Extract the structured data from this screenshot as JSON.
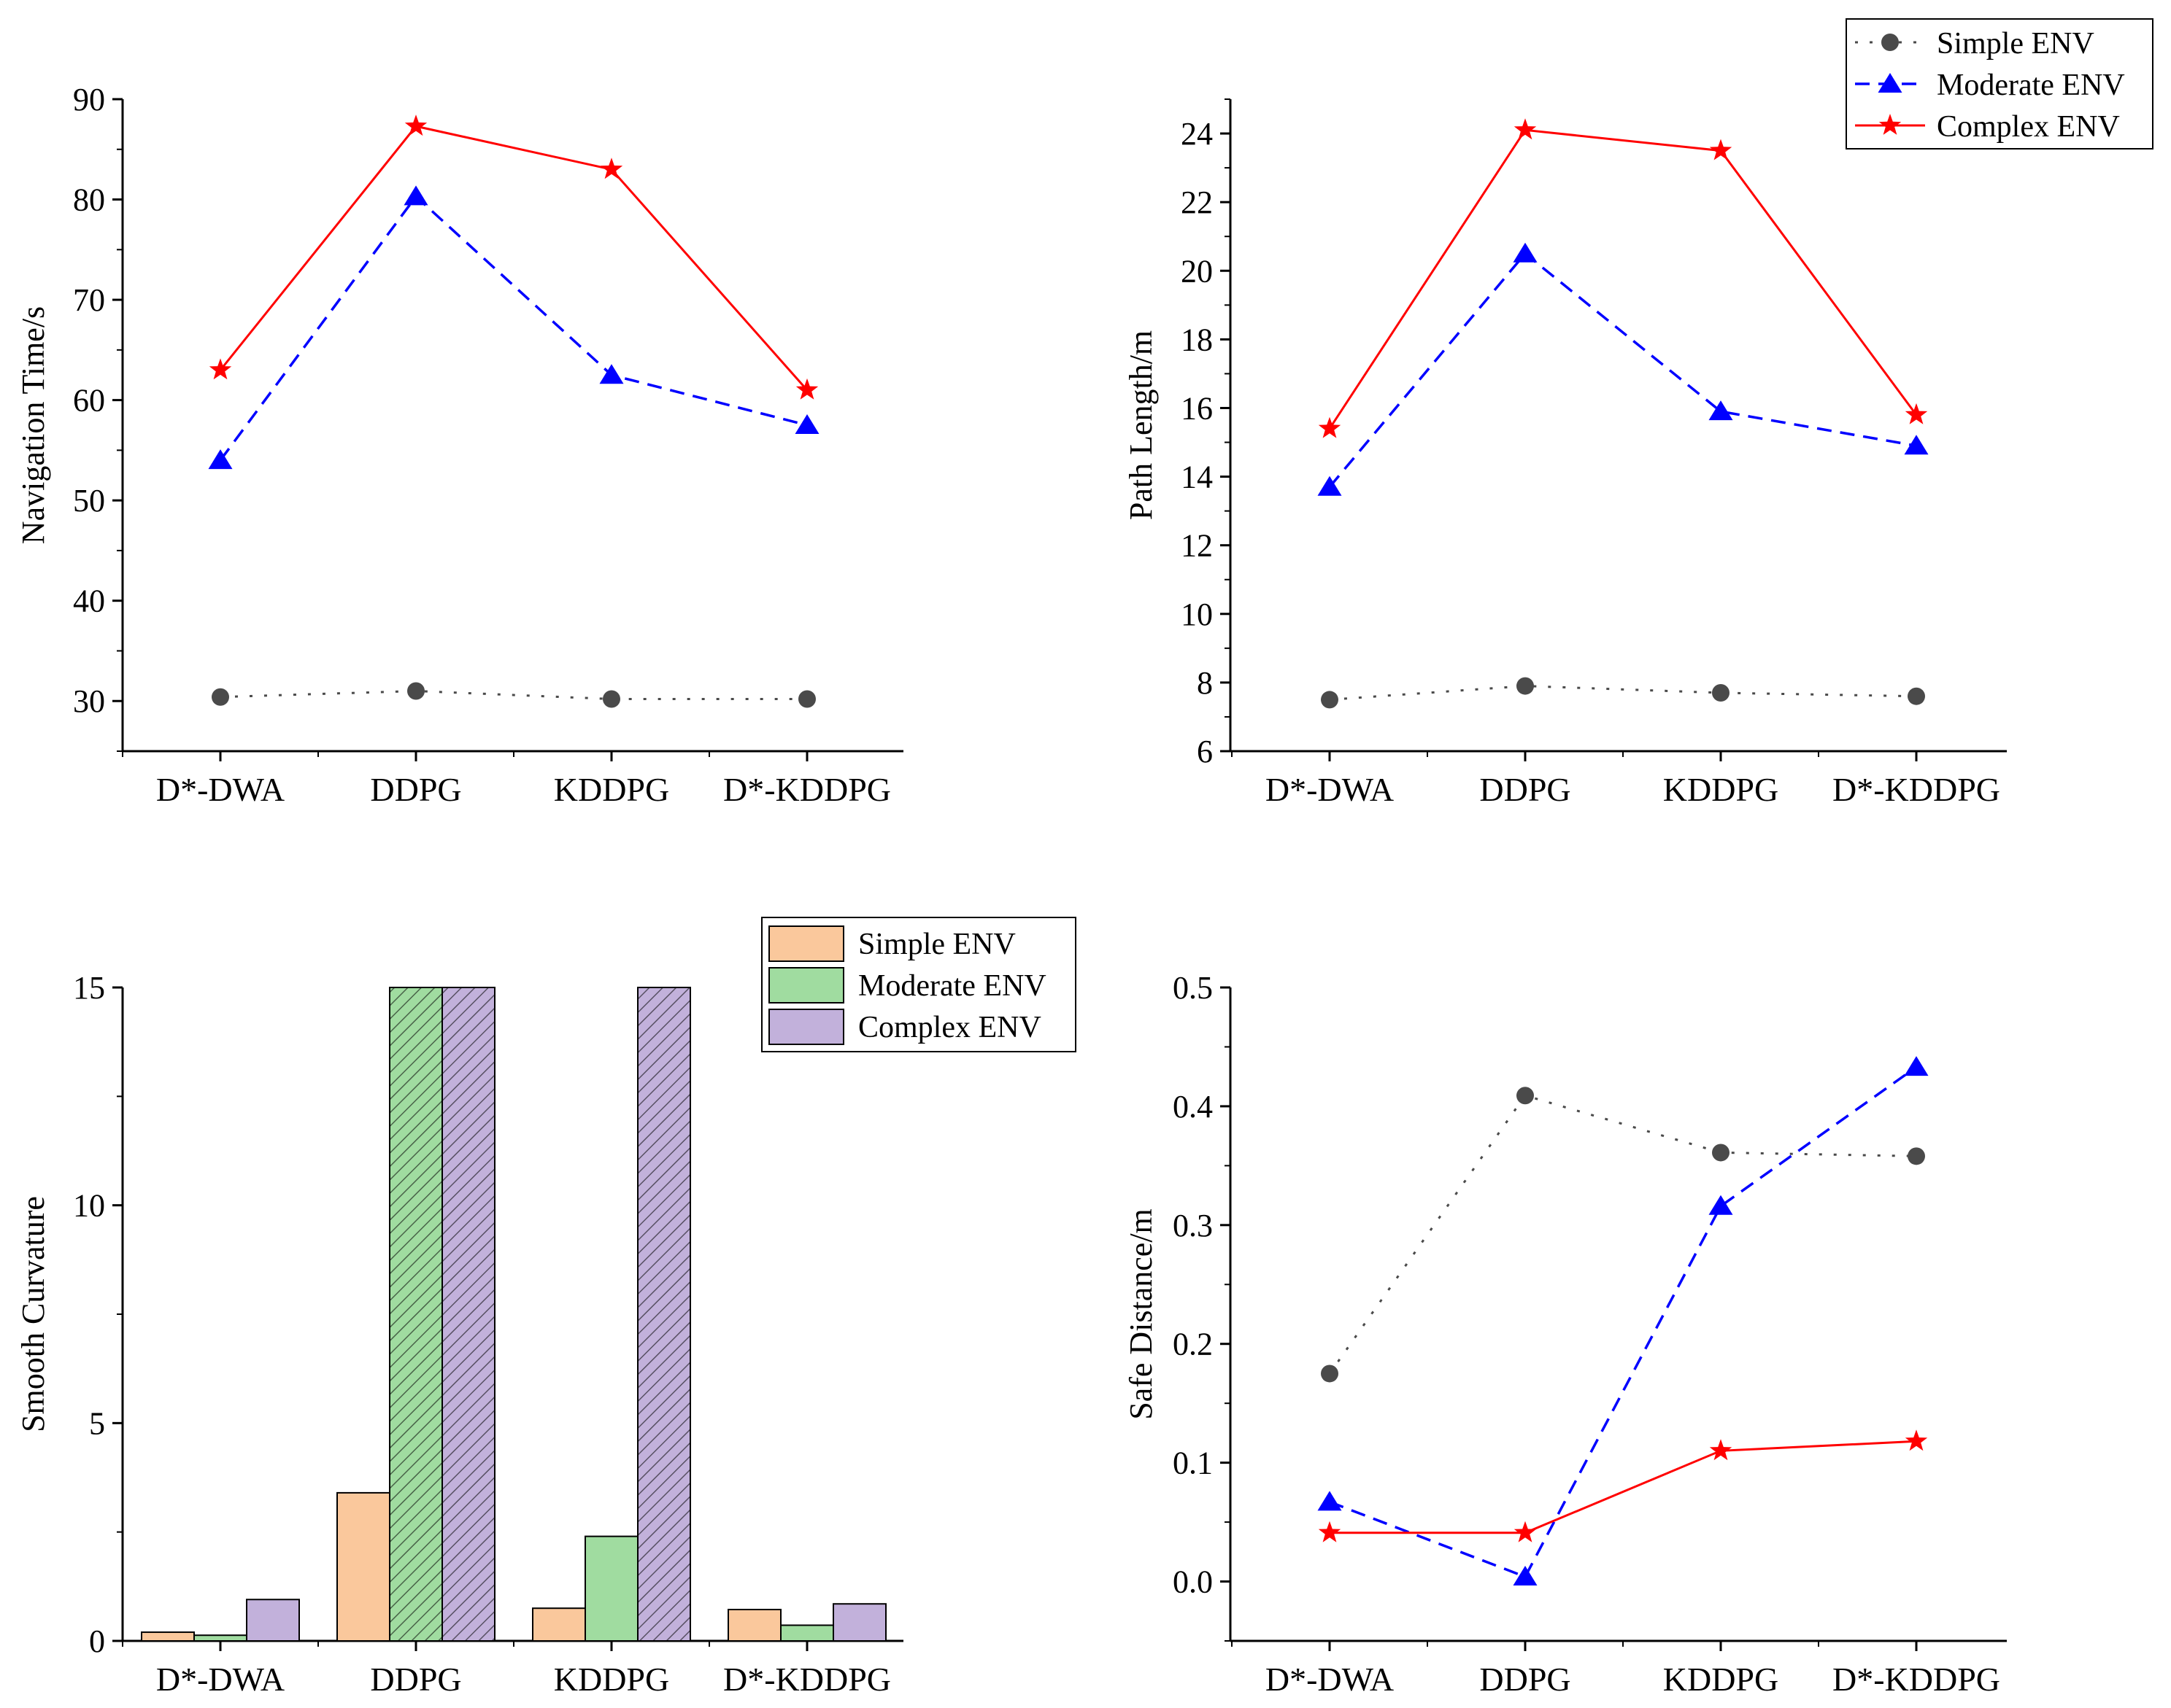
{
  "colors": {
    "simple_line": "#4a4a4a",
    "moderate_line": "#0000ff",
    "complex_line": "#ff0000",
    "simple_bar": "#fac89c",
    "moderate_bar": "#a0dca0",
    "complex_bar": "#c2b1db"
  },
  "chart_data": [
    {
      "id": "navigation-time",
      "type": "line",
      "categories": [
        "D*-DWA",
        "DDPG",
        "KDDPG",
        "D*-KDDPG"
      ],
      "ylabel": "Navigation Time/s",
      "ylim": [
        25,
        90
      ],
      "yticks": [
        30,
        40,
        50,
        60,
        70,
        80,
        90
      ],
      "series": [
        {
          "name": "Simple ENV",
          "values": [
            30.4,
            31.0,
            30.2,
            30.2
          ]
        },
        {
          "name": "Moderate ENV",
          "values": [
            54.0,
            80.3,
            62.5,
            57.5
          ]
        },
        {
          "name": "Complex ENV",
          "values": [
            63.0,
            87.3,
            83.0,
            61.0
          ]
        }
      ]
    },
    {
      "id": "path-length",
      "type": "line",
      "categories": [
        "D*-DWA",
        "DDPG",
        "KDDPG",
        "D*-KDDPG"
      ],
      "ylabel": "Path Length/m",
      "ylim": [
        6,
        25
      ],
      "yticks": [
        6,
        8,
        10,
        12,
        14,
        16,
        18,
        20,
        22,
        24
      ],
      "legend": [
        "Simple ENV",
        "Moderate ENV",
        "Complex ENV"
      ],
      "legend_position": "top-right",
      "series": [
        {
          "name": "Simple ENV",
          "values": [
            7.5,
            7.9,
            7.7,
            7.6
          ]
        },
        {
          "name": "Moderate ENV",
          "values": [
            13.7,
            20.5,
            15.9,
            14.9
          ]
        },
        {
          "name": "Complex ENV",
          "values": [
            15.4,
            24.1,
            23.5,
            15.8
          ]
        }
      ]
    },
    {
      "id": "smooth-curvature",
      "type": "bar",
      "categories": [
        "D*-DWA",
        "DDPG",
        "KDDPG",
        "D*-KDDPG"
      ],
      "ylabel": "Smooth Curvature",
      "ylim": [
        0,
        15
      ],
      "yticks": [
        0,
        5,
        10,
        15
      ],
      "legend": [
        "Simple ENV",
        "Moderate ENV",
        "Complex ENV"
      ],
      "legend_position": "top-right",
      "series": [
        {
          "name": "Simple ENV",
          "values": [
            0.2,
            3.4,
            0.75,
            0.72
          ]
        },
        {
          "name": "Moderate ENV",
          "values": [
            0.13,
            15,
            2.4,
            0.36
          ]
        },
        {
          "name": "Complex ENV",
          "values": [
            0.95,
            15,
            15,
            0.85
          ]
        }
      ],
      "clipped": [
        [
          false,
          false,
          false,
          false
        ],
        [
          false,
          true,
          false,
          false
        ],
        [
          false,
          true,
          true,
          false
        ]
      ]
    },
    {
      "id": "safe-distance",
      "type": "line",
      "categories": [
        "D*-DWA",
        "DDPG",
        "KDDPG",
        "D*-KDDPG"
      ],
      "ylabel": "Safe Distance/m",
      "ylim": [
        -0.05,
        0.5
      ],
      "yticks": [
        0.0,
        0.1,
        0.2,
        0.3,
        0.4,
        0.5
      ],
      "series": [
        {
          "name": "Simple ENV",
          "values": [
            0.175,
            0.409,
            0.361,
            0.358
          ]
        },
        {
          "name": "Moderate ENV",
          "values": [
            0.067,
            0.004,
            0.316,
            0.433
          ]
        },
        {
          "name": "Complex ENV",
          "values": [
            0.041,
            0.041,
            0.11,
            0.118
          ]
        }
      ]
    }
  ]
}
